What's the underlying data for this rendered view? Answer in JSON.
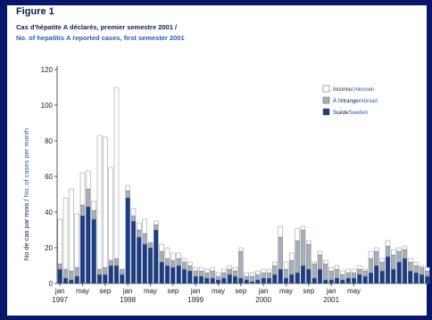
{
  "figure": {
    "label": "Figure 1",
    "title_fr": "Cas d'hépatite A déclarés, premier semestre 2001 /",
    "title_en": "No. of hepatitis A reported cases, first semester 2001"
  },
  "colors": {
    "background": "#07176b",
    "inconnu": "#ffffff",
    "etranger": "#a9aeb6",
    "suede": "#1b3d84",
    "axis_label_fr": "#0b1e4d",
    "axis_label_en": "#2c5bb5"
  },
  "chart_data": {
    "type": "bar",
    "stacked": true,
    "ylabel_fr": "No de cas par mois /",
    "ylabel_en": "No. of cases per month",
    "ylim": [
      0,
      120
    ],
    "yticks": [
      0,
      20,
      40,
      60,
      80,
      100,
      120
    ],
    "x_tick_labels": [
      {
        "month": "jan",
        "year": "1997",
        "index": 0
      },
      {
        "month": "may",
        "index": 4
      },
      {
        "month": "sep",
        "index": 8
      },
      {
        "month": "jan",
        "year": "1998",
        "index": 12
      },
      {
        "month": "may",
        "index": 16
      },
      {
        "month": "sep",
        "index": 20
      },
      {
        "month": "jan",
        "year": "1999",
        "index": 24
      },
      {
        "month": "may",
        "index": 28
      },
      {
        "month": "sep",
        "index": 32
      },
      {
        "month": "jan",
        "year": "2000",
        "index": 36
      },
      {
        "month": "may",
        "index": 40
      },
      {
        "month": "sep",
        "index": 44
      },
      {
        "month": "jan",
        "year": "2001",
        "index": 48
      },
      {
        "month": "may",
        "index": 52
      }
    ],
    "legend": [
      {
        "key": "inconnu",
        "label_fr": "Inconnu",
        "label_en": "Unknown"
      },
      {
        "key": "etranger",
        "label_fr": "À l'étranger",
        "label_en": "Abroad"
      },
      {
        "key": "suede",
        "label_fr": "Suède",
        "label_en": "Sweden"
      }
    ],
    "series": [
      {
        "key": "suede",
        "name": "Suède / Sweden",
        "values": [
          8,
          3,
          2,
          4,
          38,
          43,
          36,
          5,
          5,
          10,
          10,
          5,
          48,
          35,
          26,
          22,
          20,
          30,
          12,
          10,
          9,
          10,
          8,
          7,
          4,
          4,
          3,
          3,
          2,
          3,
          5,
          4,
          3,
          2,
          1,
          2,
          3,
          3,
          5,
          8,
          3,
          5,
          6,
          10,
          8,
          3,
          8,
          2,
          2,
          3,
          2,
          3,
          3,
          5,
          4,
          6,
          10,
          7,
          15,
          8,
          12,
          14,
          7,
          6,
          5,
          4
        ]
      },
      {
        "key": "etranger",
        "name": "À l'étranger / Abroad",
        "values": [
          3,
          5,
          5,
          5,
          6,
          10,
          5,
          3,
          4,
          3,
          4,
          3,
          4,
          3,
          4,
          6,
          3,
          3,
          6,
          4,
          4,
          4,
          4,
          3,
          3,
          3,
          3,
          4,
          2,
          3,
          3,
          3,
          15,
          2,
          3,
          3,
          3,
          3,
          5,
          18,
          5,
          8,
          18,
          20,
          14,
          8,
          8,
          9,
          5,
          5,
          3,
          3,
          3,
          3,
          3,
          8,
          8,
          5,
          6,
          8,
          6,
          5,
          5,
          4,
          4,
          3
        ]
      },
      {
        "key": "inconnu",
        "name": "Inconnu / Unknown",
        "values": [
          25,
          40,
          46,
          30,
          18,
          10,
          5,
          75,
          73,
          52,
          96,
          0,
          3,
          4,
          4,
          8,
          0,
          2,
          4,
          6,
          4,
          3,
          2,
          2,
          2,
          2,
          2,
          2,
          2,
          2,
          2,
          2,
          2,
          2,
          2,
          2,
          2,
          2,
          2,
          6,
          4,
          4,
          7,
          2,
          2,
          1,
          2,
          2,
          2,
          2,
          2,
          2,
          2,
          2,
          1,
          4,
          2,
          2,
          3,
          3,
          2,
          2,
          2,
          2,
          1,
          2
        ]
      }
    ]
  }
}
